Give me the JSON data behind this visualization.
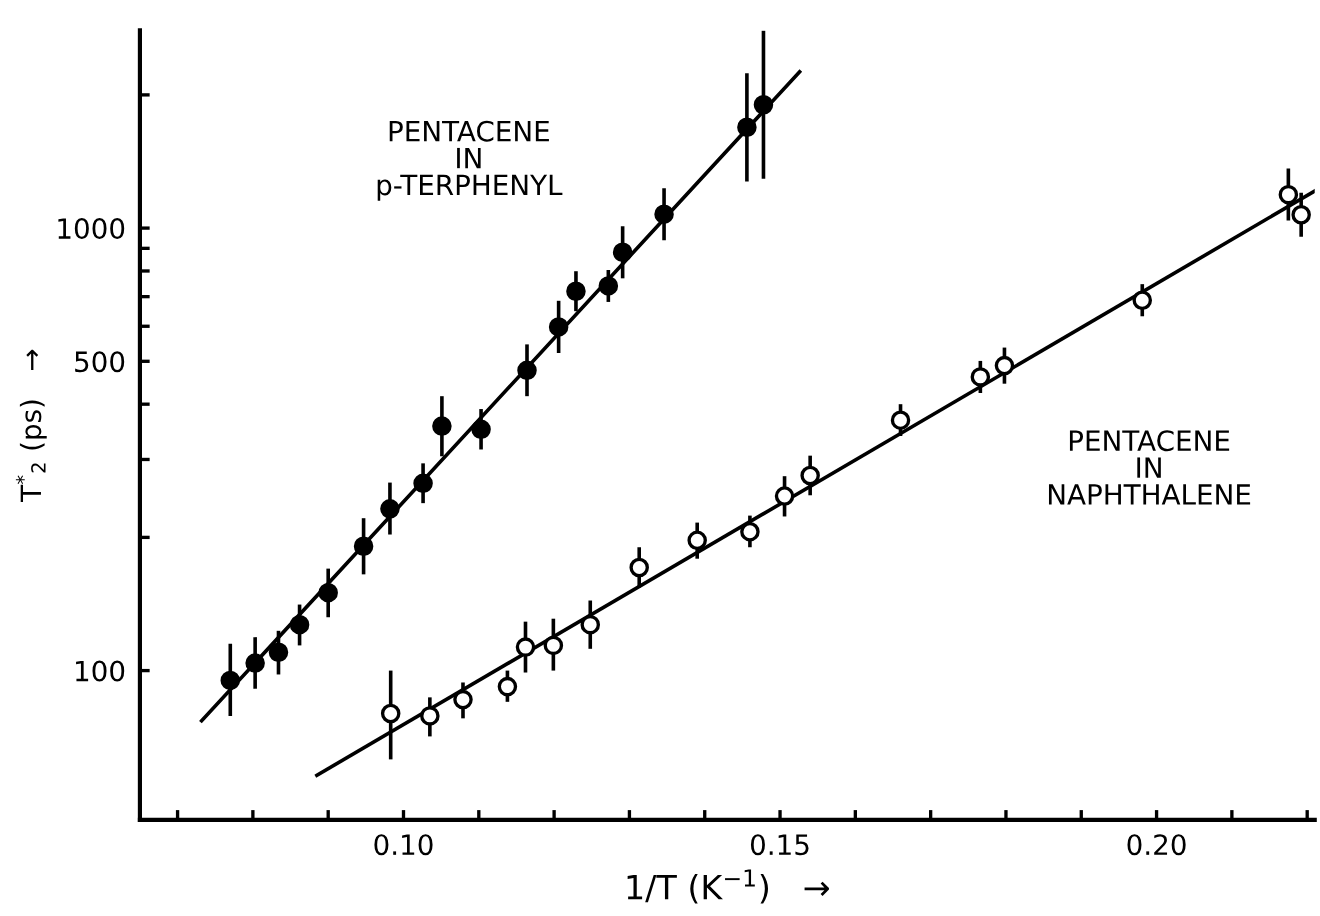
{
  "chart_data": {
    "type": "scatter",
    "xlabel": "1/T (K$^{−1}$)   →",
    "ylabel": "T$^{*}$$_{2}$ (ps)   →",
    "log": "y",
    "xlim": [
      0.065,
      0.221
    ],
    "ylim": [
      46,
      2800
    ],
    "xticks": [
      {
        "value": 0.07,
        "label": null
      },
      {
        "value": 0.08,
        "label": null
      },
      {
        "value": 0.09,
        "label": null
      },
      {
        "value": 0.1,
        "label": "0.10"
      },
      {
        "value": 0.11,
        "label": null
      },
      {
        "value": 0.12,
        "label": null
      },
      {
        "value": 0.13,
        "label": null
      },
      {
        "value": 0.14,
        "label": null
      },
      {
        "value": 0.15,
        "label": "0.15"
      },
      {
        "value": 0.16,
        "label": null
      },
      {
        "value": 0.17,
        "label": null
      },
      {
        "value": 0.18,
        "label": null
      },
      {
        "value": 0.19,
        "label": null
      },
      {
        "value": 0.2,
        "label": "0.20"
      },
      {
        "value": 0.21,
        "label": null
      },
      {
        "value": 0.22,
        "label": null
      }
    ],
    "yticks": [
      100,
      {
        "value": 200,
        "label": null
      },
      {
        "value": 300,
        "label": null
      },
      {
        "value": 400,
        "label": null
      },
      500,
      {
        "value": 600,
        "label": null
      },
      {
        "value": 700,
        "label": null
      },
      {
        "value": 800,
        "label": null
      },
      {
        "value": 900,
        "label": null
      },
      1000,
      {
        "value": 2000,
        "label": null
      }
    ],
    "grid": false,
    "legend": false,
    "series": [
      {
        "marker": "circle",
        "color": "#000000",
        "x": [
          0.077,
          0.0803,
          0.0834,
          0.0862,
          0.09,
          0.0947,
          0.0982,
          0.1026,
          0.1051,
          0.1103,
          0.1164,
          0.1206,
          0.1229,
          0.1272,
          0.1291,
          0.1346,
          0.1456,
          0.1478
        ],
        "values": [
          95,
          104,
          110,
          127,
          150,
          191,
          232,
          265,
          357,
          351,
          477,
          598,
          720,
          740,
          882,
          1075,
          1690,
          1900
        ],
        "errors": [
          [
            79,
            115
          ],
          [
            91,
            119
          ],
          [
            98,
            123
          ],
          [
            114,
            141
          ],
          [
            132,
            170
          ],
          [
            165,
            221
          ],
          [
            203,
            266
          ],
          [
            239,
            294
          ],
          [
            305,
            417
          ],
          [
            316,
            390
          ],
          [
            417,
            546
          ],
          [
            522,
            685
          ],
          [
            649,
            799
          ],
          [
            681,
            804
          ],
          [
            770,
            1010
          ],
          [
            939,
            1231
          ],
          [
            1275,
            2239
          ],
          [
            1293,
            2793
          ]
        ]
      },
      {
        "marker": "circle",
        "color": "#ffffff",
        "x": [
          0.0983,
          0.1035,
          0.1079,
          0.1138,
          0.1162,
          0.1199,
          0.1248,
          0.1313,
          0.139,
          0.146,
          0.1506,
          0.154,
          0.166,
          0.1766,
          0.1798,
          0.1981,
          0.2175,
          0.2192
        ],
        "values": [
          80,
          79,
          86,
          92,
          113,
          114,
          127,
          171,
          197,
          206,
          248,
          276,
          368,
          461,
          489,
          687,
          1190,
          1072
        ],
        "errors": [
          [
            63,
            100
          ],
          [
            71,
            87
          ],
          [
            78,
            94
          ],
          [
            85,
            100
          ],
          [
            99,
            129
          ],
          [
            100,
            131
          ],
          [
            112,
            144
          ],
          [
            154,
            190
          ],
          [
            179,
            216
          ],
          [
            190,
            224
          ],
          [
            223,
            275
          ],
          [
            249,
            306
          ],
          [
            339,
            400
          ],
          [
            424,
            501
          ],
          [
            445,
            537
          ],
          [
            632,
            747
          ],
          [
            1040,
            1363
          ],
          [
            956,
            1202
          ]
        ]
      },
      {
        "type": "line",
        "color": "#000000",
        "x": [
          0.0732,
          0.1526
        ],
        "values": [
          77,
          2255
        ]
      },
      {
        "type": "line",
        "color": "#000000",
        "x": [
          0.0885,
          0.221
        ],
        "values": [
          58,
          1213
        ]
      }
    ],
    "annotations": [
      "PENTACENE\nIN\np-TERPHENYL",
      "PENTACENE\nIN\nNAPHTHALENE"
    ]
  }
}
